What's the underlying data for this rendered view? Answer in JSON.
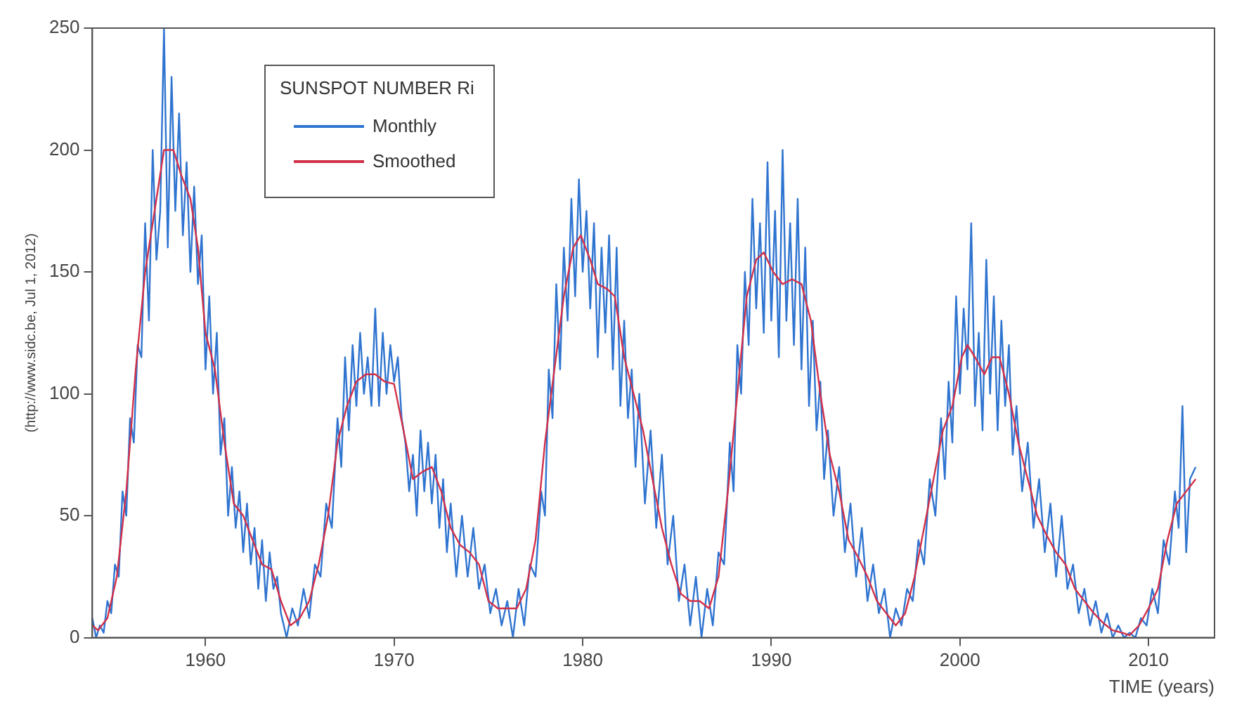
{
  "chart_data": {
    "type": "line",
    "xlabel": "TIME (years)",
    "ylabel": "(http://www.sidc.be, Jul 1, 2012)",
    "legend_title": "SUNSPOT NUMBER Ri",
    "legend": "top left",
    "xlim": [
      1954,
      2013.5
    ],
    "xticks": [
      1960,
      1970,
      1980,
      1990,
      2000,
      2010
    ],
    "ylim": [
      0,
      250
    ],
    "yticks": [
      0,
      50,
      100,
      150,
      200,
      250
    ],
    "grid": false,
    "series": [
      {
        "name": "Monthly",
        "color": "#2f74d0",
        "x": [
          1954.0,
          1954.2,
          1954.4,
          1954.6,
          1954.8,
          1955.0,
          1955.2,
          1955.4,
          1955.6,
          1955.8,
          1956.0,
          1956.2,
          1956.4,
          1956.6,
          1956.8,
          1957.0,
          1957.2,
          1957.4,
          1957.6,
          1957.8,
          1958.0,
          1958.2,
          1958.4,
          1958.6,
          1958.8,
          1959.0,
          1959.2,
          1959.4,
          1959.6,
          1959.8,
          1960.0,
          1960.2,
          1960.4,
          1960.6,
          1960.8,
          1961.0,
          1961.2,
          1961.4,
          1961.6,
          1961.8,
          1962.0,
          1962.2,
          1962.4,
          1962.6,
          1962.8,
          1963.0,
          1963.2,
          1963.4,
          1963.6,
          1963.8,
          1964.0,
          1964.3,
          1964.6,
          1964.9,
          1965.2,
          1965.5,
          1965.8,
          1966.1,
          1966.4,
          1966.7,
          1967.0,
          1967.2,
          1967.4,
          1967.6,
          1967.8,
          1968.0,
          1968.2,
          1968.4,
          1968.6,
          1968.8,
          1969.0,
          1969.2,
          1969.4,
          1969.6,
          1969.8,
          1970.0,
          1970.2,
          1970.4,
          1970.6,
          1970.8,
          1971.0,
          1971.2,
          1971.4,
          1971.6,
          1971.8,
          1972.0,
          1972.2,
          1972.4,
          1972.6,
          1972.8,
          1973.0,
          1973.3,
          1973.6,
          1973.9,
          1974.2,
          1974.5,
          1974.8,
          1975.1,
          1975.4,
          1975.7,
          1976.0,
          1976.3,
          1976.6,
          1976.9,
          1977.2,
          1977.5,
          1977.8,
          1978.0,
          1978.2,
          1978.4,
          1978.6,
          1978.8,
          1979.0,
          1979.2,
          1979.4,
          1979.6,
          1979.8,
          1980.0,
          1980.2,
          1980.4,
          1980.6,
          1980.8,
          1981.0,
          1981.2,
          1981.4,
          1981.6,
          1981.8,
          1982.0,
          1982.2,
          1982.4,
          1982.6,
          1982.8,
          1983.0,
          1983.3,
          1983.6,
          1983.9,
          1984.2,
          1984.5,
          1984.8,
          1985.1,
          1985.4,
          1985.7,
          1986.0,
          1986.3,
          1986.6,
          1986.9,
          1987.2,
          1987.5,
          1987.8,
          1988.0,
          1988.2,
          1988.4,
          1988.6,
          1988.8,
          1989.0,
          1989.2,
          1989.4,
          1989.6,
          1989.8,
          1990.0,
          1990.2,
          1990.4,
          1990.6,
          1990.8,
          1991.0,
          1991.2,
          1991.4,
          1991.6,
          1991.8,
          1992.0,
          1992.2,
          1992.4,
          1992.6,
          1992.8,
          1993.0,
          1993.3,
          1993.6,
          1993.9,
          1994.2,
          1994.5,
          1994.8,
          1995.1,
          1995.4,
          1995.7,
          1996.0,
          1996.3,
          1996.6,
          1996.9,
          1997.2,
          1997.5,
          1997.8,
          1998.1,
          1998.4,
          1998.7,
          1999.0,
          1999.2,
          1999.4,
          1999.6,
          1999.8,
          2000.0,
          2000.2,
          2000.4,
          2000.6,
          2000.8,
          2001.0,
          2001.2,
          2001.4,
          2001.6,
          2001.8,
          2002.0,
          2002.2,
          2002.4,
          2002.6,
          2002.8,
          2003.0,
          2003.3,
          2003.6,
          2003.9,
          2004.2,
          2004.5,
          2004.8,
          2005.1,
          2005.4,
          2005.7,
          2006.0,
          2006.3,
          2006.6,
          2006.9,
          2007.2,
          2007.5,
          2007.8,
          2008.1,
          2008.4,
          2008.7,
          2009.0,
          2009.3,
          2009.6,
          2009.9,
          2010.2,
          2010.5,
          2010.8,
          2011.1,
          2011.4,
          2011.6,
          2011.8,
          2012.0,
          2012.2,
          2012.5
        ],
        "values": [
          8,
          0,
          5,
          2,
          15,
          10,
          30,
          25,
          60,
          50,
          90,
          80,
          120,
          115,
          170,
          130,
          200,
          155,
          175,
          250,
          160,
          230,
          175,
          215,
          165,
          195,
          150,
          185,
          145,
          165,
          110,
          140,
          100,
          125,
          75,
          90,
          50,
          70,
          45,
          60,
          35,
          55,
          30,
          45,
          20,
          40,
          15,
          35,
          20,
          25,
          10,
          0,
          12,
          5,
          20,
          8,
          30,
          25,
          55,
          45,
          90,
          70,
          115,
          85,
          120,
          95,
          125,
          100,
          115,
          95,
          135,
          95,
          125,
          100,
          120,
          105,
          115,
          90,
          80,
          60,
          75,
          50,
          85,
          60,
          80,
          55,
          75,
          45,
          65,
          35,
          55,
          25,
          50,
          25,
          45,
          20,
          30,
          10,
          20,
          5,
          15,
          0,
          20,
          5,
          30,
          25,
          60,
          50,
          110,
          90,
          145,
          110,
          160,
          130,
          180,
          140,
          188,
          150,
          175,
          135,
          170,
          115,
          160,
          125,
          165,
          110,
          160,
          95,
          130,
          90,
          110,
          70,
          100,
          55,
          85,
          45,
          75,
          30,
          50,
          15,
          30,
          5,
          25,
          0,
          20,
          5,
          35,
          30,
          80,
          60,
          120,
          100,
          150,
          120,
          180,
          135,
          170,
          125,
          195,
          130,
          175,
          115,
          200,
          130,
          170,
          120,
          180,
          110,
          160,
          95,
          130,
          85,
          105,
          65,
          85,
          50,
          70,
          35,
          55,
          25,
          45,
          15,
          30,
          10,
          20,
          0,
          12,
          5,
          20,
          15,
          40,
          30,
          65,
          50,
          90,
          65,
          105,
          80,
          140,
          100,
          135,
          110,
          170,
          95,
          125,
          85,
          155,
          100,
          140,
          85,
          130,
          95,
          120,
          75,
          95,
          60,
          80,
          45,
          65,
          35,
          55,
          25,
          50,
          20,
          30,
          10,
          20,
          5,
          15,
          2,
          10,
          0,
          5,
          0,
          2,
          0,
          8,
          5,
          20,
          10,
          40,
          30,
          60,
          45,
          95,
          35,
          65,
          70
        ]
      },
      {
        "name": "Smoothed",
        "color": "#d23048",
        "x": [
          1954.0,
          1954.3,
          1954.8,
          1955.3,
          1955.8,
          1956.3,
          1956.8,
          1957.3,
          1957.8,
          1958.3,
          1958.7,
          1959.2,
          1959.6,
          1960.0,
          1960.5,
          1961.0,
          1961.5,
          1962.0,
          1962.5,
          1963.0,
          1963.5,
          1964.0,
          1964.5,
          1965.0,
          1965.5,
          1966.0,
          1966.5,
          1967.0,
          1967.5,
          1968.0,
          1968.5,
          1969.0,
          1969.5,
          1970.0,
          1970.5,
          1971.0,
          1971.5,
          1972.0,
          1972.5,
          1973.0,
          1973.5,
          1974.0,
          1974.5,
          1975.0,
          1975.5,
          1976.0,
          1976.5,
          1977.0,
          1977.5,
          1978.0,
          1978.5,
          1979.0,
          1979.5,
          1979.9,
          1980.4,
          1980.8,
          1981.3,
          1981.7,
          1982.2,
          1982.7,
          1983.2,
          1983.7,
          1984.2,
          1984.7,
          1985.2,
          1985.7,
          1986.2,
          1986.7,
          1987.2,
          1987.7,
          1988.2,
          1988.7,
          1989.2,
          1989.6,
          1990.1,
          1990.6,
          1991.1,
          1991.6,
          1992.1,
          1992.6,
          1993.1,
          1993.6,
          1994.1,
          1994.6,
          1995.1,
          1995.6,
          1996.1,
          1996.6,
          1997.1,
          1997.6,
          1998.1,
          1998.6,
          1999.1,
          1999.6,
          2000.1,
          2000.4,
          2000.8,
          2001.3,
          2001.7,
          2002.1,
          2002.6,
          2003.1,
          2003.6,
          2004.1,
          2004.6,
          2005.1,
          2005.6,
          2006.1,
          2006.6,
          2007.1,
          2007.6,
          2008.1,
          2008.6,
          2009.0,
          2009.5,
          2010.0,
          2010.5,
          2011.0,
          2011.5,
          2012.0,
          2012.5
        ],
        "values": [
          5,
          3,
          8,
          25,
          60,
          110,
          150,
          175,
          200,
          200,
          190,
          180,
          160,
          125,
          110,
          80,
          55,
          50,
          40,
          30,
          28,
          15,
          5,
          8,
          15,
          30,
          50,
          80,
          95,
          105,
          108,
          108,
          105,
          104,
          85,
          65,
          68,
          70,
          60,
          45,
          38,
          35,
          30,
          15,
          12,
          12,
          12,
          20,
          40,
          80,
          110,
          140,
          160,
          165,
          155,
          145,
          143,
          140,
          115,
          100,
          85,
          65,
          45,
          30,
          18,
          15,
          15,
          12,
          25,
          60,
          100,
          140,
          155,
          158,
          150,
          145,
          147,
          145,
          130,
          100,
          75,
          60,
          40,
          33,
          25,
          15,
          10,
          5,
          10,
          25,
          45,
          65,
          85,
          95,
          115,
          120,
          115,
          108,
          115,
          115,
          100,
          80,
          65,
          50,
          42,
          35,
          30,
          20,
          15,
          10,
          6,
          3,
          2,
          1,
          5,
          12,
          20,
          40,
          55,
          60,
          65
        ]
      }
    ]
  }
}
